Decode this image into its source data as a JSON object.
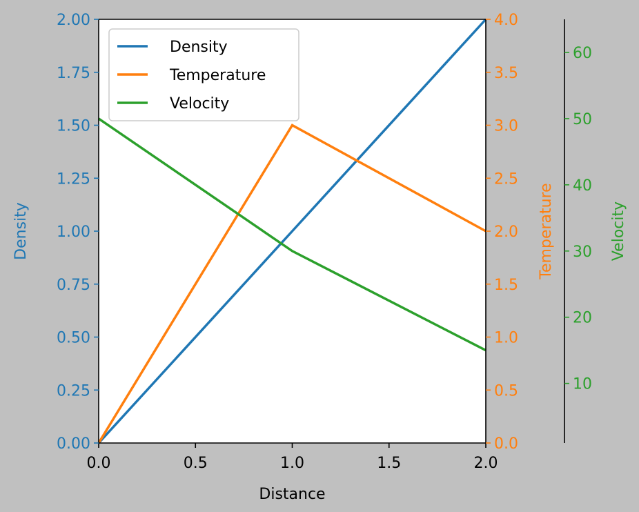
{
  "colors": {
    "figure_background": "#c0c0c0",
    "plot_background": "#ffffff",
    "axis_default": "#000000",
    "legend_border": "#cccccc"
  },
  "chart_data": {
    "type": "line",
    "xlabel": "Distance",
    "xlim": [
      0,
      2
    ],
    "xticks": [
      "0.0",
      "0.5",
      "1.0",
      "1.5",
      "2.0"
    ],
    "axes": [
      {
        "id": "density",
        "label": "Density",
        "side": "left",
        "color": "#1f77b4",
        "ylim": [
          0,
          2
        ],
        "ticks": [
          "0.00",
          "0.25",
          "0.50",
          "0.75",
          "1.00",
          "1.25",
          "1.50",
          "1.75",
          "2.00"
        ]
      },
      {
        "id": "temperature",
        "label": "Temperature",
        "side": "right",
        "color": "#ff7f0e",
        "ylim": [
          0,
          4
        ],
        "ticks": [
          "0.0",
          "0.5",
          "1.0",
          "1.5",
          "2.0",
          "2.5",
          "3.0",
          "3.5",
          "4.0"
        ]
      },
      {
        "id": "velocity",
        "label": "Velocity",
        "side": "right-offset",
        "color": "#2ca02c",
        "ylim": [
          1,
          65
        ],
        "ticks": [
          "10",
          "20",
          "30",
          "40",
          "50",
          "60"
        ]
      }
    ],
    "series": [
      {
        "name": "Density",
        "axis": "density",
        "color": "#1f77b4",
        "x": [
          0,
          1,
          2
        ],
        "y": [
          0,
          1,
          2
        ]
      },
      {
        "name": "Temperature",
        "axis": "temperature",
        "color": "#ff7f0e",
        "x": [
          0,
          1,
          2
        ],
        "y": [
          0,
          3,
          2
        ]
      },
      {
        "name": "Velocity",
        "axis": "velocity",
        "color": "#2ca02c",
        "x": [
          0,
          1,
          2
        ],
        "y": [
          50,
          30,
          15
        ]
      }
    ],
    "legend": {
      "placement": "top-left",
      "entries": [
        "Density",
        "Temperature",
        "Velocity"
      ]
    },
    "grid": false
  }
}
